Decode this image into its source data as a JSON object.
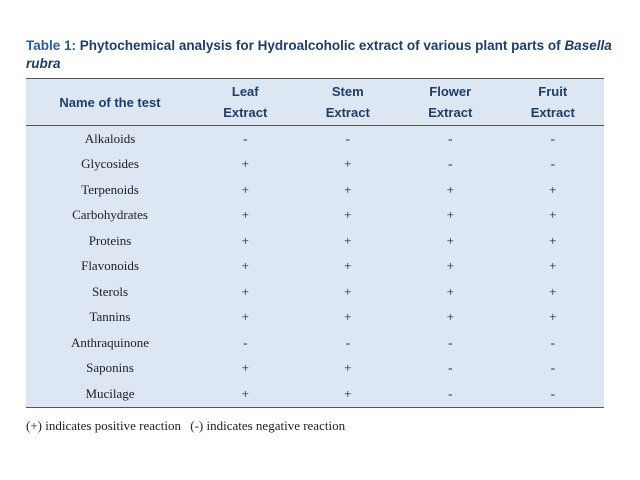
{
  "caption": {
    "label": "Table 1:",
    "text": "Phytochemical analysis for Hydroalcoholic extract of various plant parts of",
    "species": "Basella rubra"
  },
  "table": {
    "headers": [
      {
        "l1": "Name of the test",
        "l2": ""
      },
      {
        "l1": "Leaf",
        "l2": "Extract"
      },
      {
        "l1": "Stem",
        "l2": "Extract"
      },
      {
        "l1": "Flower",
        "l2": "Extract"
      },
      {
        "l1": "Fruit",
        "l2": "Extract"
      }
    ],
    "rows": [
      [
        "Alkaloids",
        "-",
        "-",
        "-",
        "-"
      ],
      [
        "Glycosides",
        "+",
        "+",
        "-",
        "-"
      ],
      [
        "Terpenoids",
        "+",
        "+",
        "+",
        "+"
      ],
      [
        "Carbohydrates",
        "+",
        "+",
        "+",
        "+"
      ],
      [
        "Proteins",
        "+",
        "+",
        "+",
        "+"
      ],
      [
        "Flavonoids",
        "+",
        "+",
        "+",
        "+"
      ],
      [
        "Sterols",
        "+",
        "+",
        "+",
        "+"
      ],
      [
        "Tannins",
        "+",
        "+",
        "+",
        "+"
      ],
      [
        "Anthraquinone",
        "-",
        "-",
        "-",
        "-"
      ],
      [
        "Saponins",
        "+",
        "+",
        "-",
        "-"
      ],
      [
        "Mucilage",
        "+",
        "+",
        "-",
        "-"
      ]
    ]
  },
  "footnote": {
    "positive": "(+) indicates positive reaction",
    "negative": "(-) indicates negative reaction"
  }
}
